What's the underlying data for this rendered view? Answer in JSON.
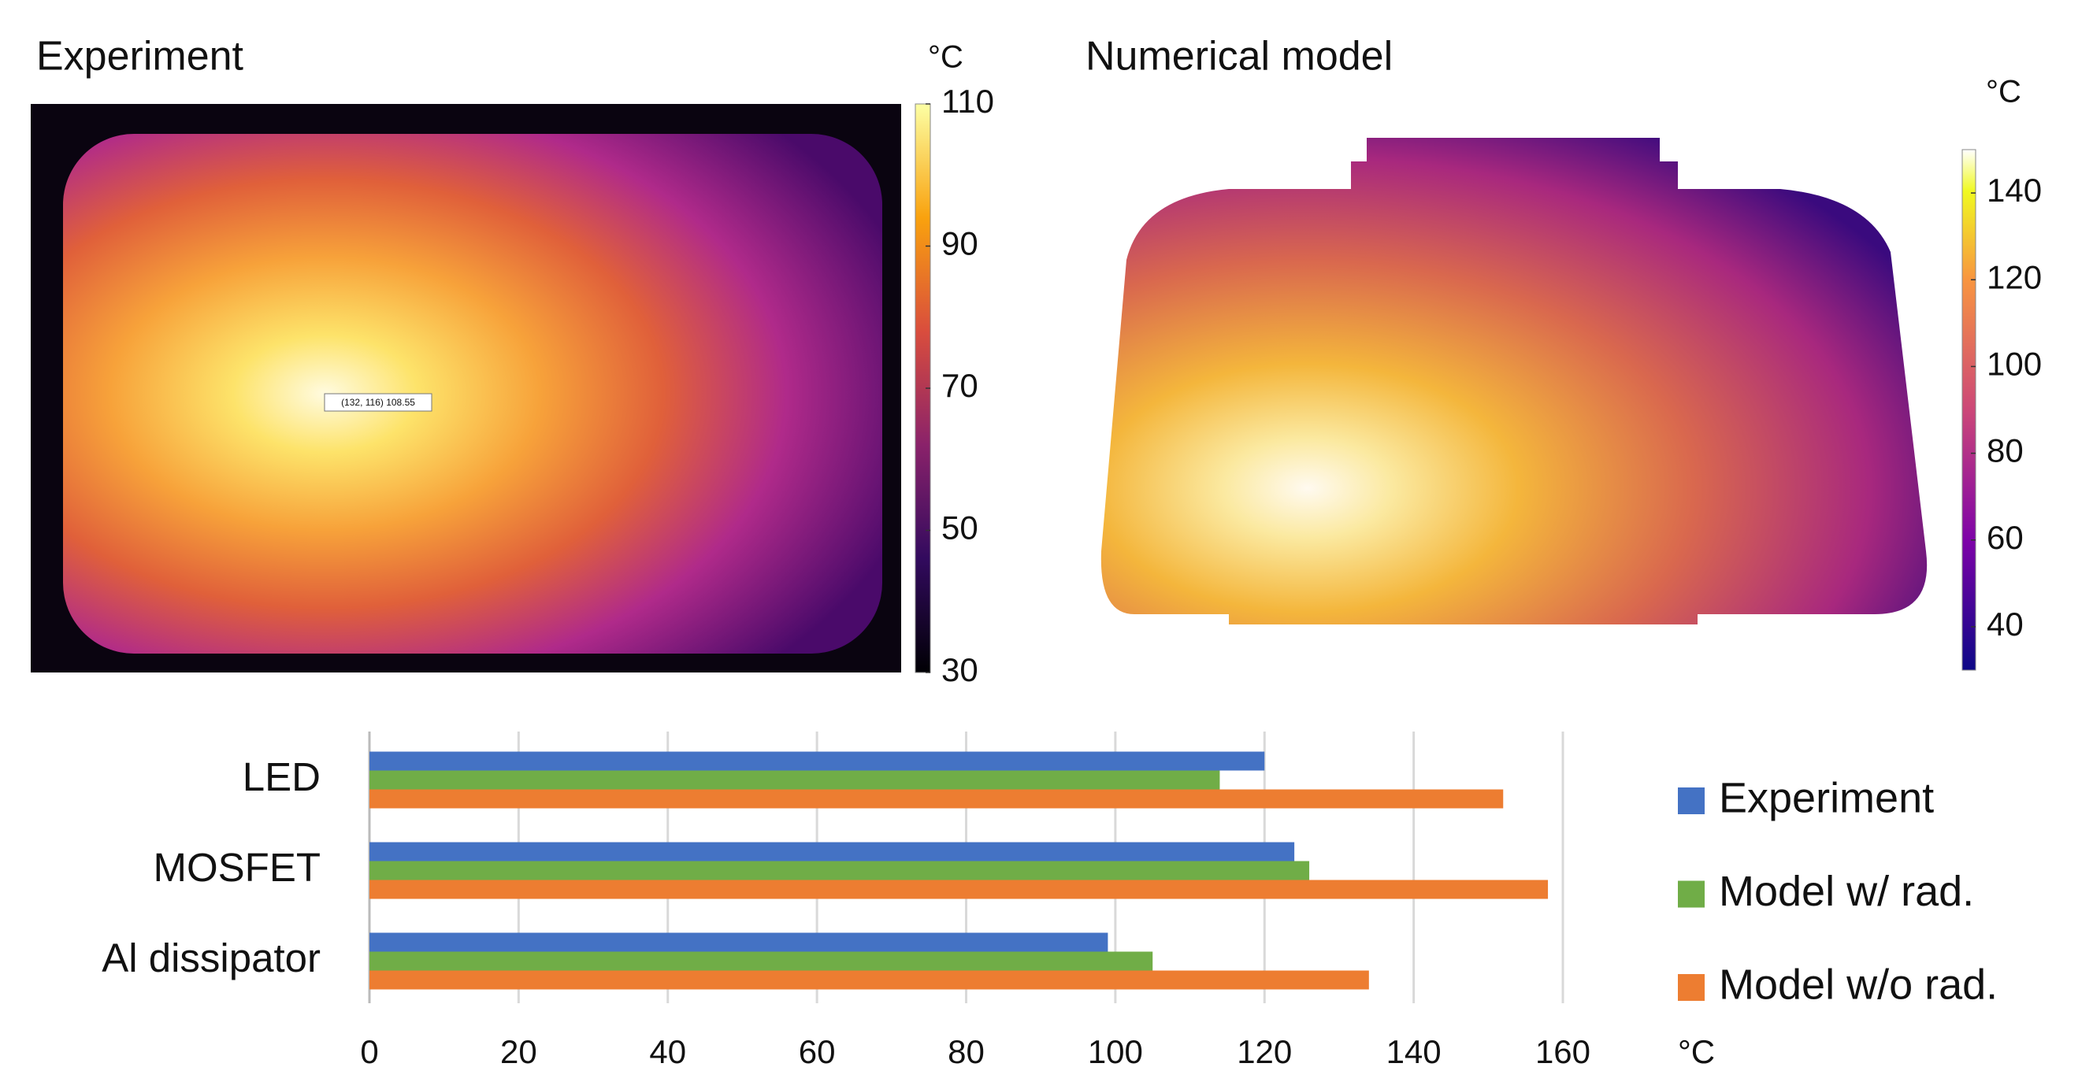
{
  "experiment": {
    "title": "Experiment",
    "annotation": "(132, 116) 108.55",
    "colorbar": {
      "unit": "°C",
      "lim": [
        30,
        110
      ],
      "ticks": [
        30,
        50,
        70,
        90,
        110
      ]
    }
  },
  "model": {
    "title": "Numerical model",
    "colorbar": {
      "unit": "°C",
      "lim": [
        30,
        150
      ],
      "ticks": [
        40,
        60,
        80,
        100,
        120,
        140
      ]
    }
  },
  "chart_data": {
    "type": "bar",
    "orientation": "horizontal",
    "categories": [
      "LED",
      "MOSFET",
      "Al dissipator"
    ],
    "series": [
      {
        "name": "Experiment",
        "color": "#4472c4",
        "values": [
          120,
          124,
          99
        ]
      },
      {
        "name": "Model w/ rad.",
        "color": "#70ad47",
        "values": [
          114,
          126,
          105
        ]
      },
      {
        "name": "Model w/o rad.",
        "color": "#ed7d31",
        "values": [
          152,
          158,
          134
        ]
      }
    ],
    "xlim": [
      0,
      160
    ],
    "xticks": [
      0,
      20,
      40,
      60,
      80,
      100,
      120,
      140,
      160
    ],
    "x_unit": "°C",
    "grid": true
  }
}
